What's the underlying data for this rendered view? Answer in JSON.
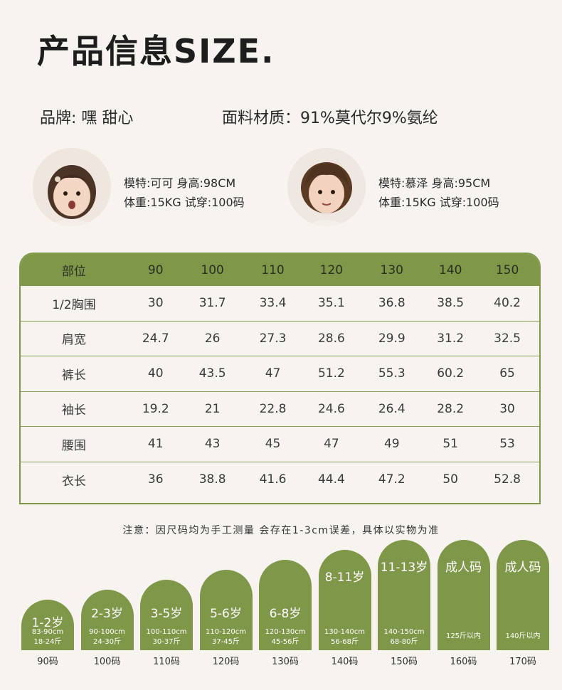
{
  "title": "产品信息SIZE.",
  "brand": "品牌: 嘿 甜心",
  "fabric": "面料材质：91%莫代尔9%氨纶",
  "models": [
    {
      "line1": "模特:可可 身高:98CM",
      "line2": "体重:15KG 试穿:100码"
    },
    {
      "line1": "模特:慕泽  身高:95CM",
      "line2": "体重:15KG 试穿:100码"
    }
  ],
  "table": {
    "headers": [
      "部位",
      "90",
      "100",
      "110",
      "120",
      "130",
      "140",
      "150"
    ],
    "rows": [
      [
        "1/2胸围",
        "30",
        "31.7",
        "33.4",
        "35.1",
        "36.8",
        "38.5",
        "40.2"
      ],
      [
        "肩宽",
        "24.7",
        "26",
        "27.3",
        "28.6",
        "29.9",
        "31.2",
        "32.5"
      ],
      [
        "裤长",
        "40",
        "43.5",
        "47",
        "51.2",
        "55.3",
        "60.2",
        "65"
      ],
      [
        "袖长",
        "19.2",
        "21",
        "22.8",
        "24.6",
        "26.4",
        "28.2",
        "30"
      ],
      [
        "腰围",
        "41",
        "43",
        "45",
        "47",
        "49",
        "51",
        "53"
      ],
      [
        "衣长",
        "36",
        "38.8",
        "41.6",
        "44.4",
        "47.2",
        "50",
        "52.8"
      ]
    ]
  },
  "note": "注意：因尺码均为手工测量 会存在1-3cm误差，具体以实物为准",
  "age_chart": [
    {
      "age": "1-2岁",
      "height": "83-90cm",
      "weight": "18-24斤",
      "size": "90码",
      "level": 1
    },
    {
      "age": "2-3岁",
      "height": "90-100cm",
      "weight": "24-30斤",
      "size": "100码",
      "level": 2
    },
    {
      "age": "3-5岁",
      "height": "100-110cm",
      "weight": "30-37斤",
      "size": "110码",
      "level": 3
    },
    {
      "age": "5-6岁",
      "height": "110-120cm",
      "weight": "37-45斤",
      "size": "120码",
      "level": 4
    },
    {
      "age": "6-8岁",
      "height": "120-130cm",
      "weight": "45-56斤",
      "size": "130码",
      "level": 5
    },
    {
      "age": "8-11岁",
      "height": "130-140cm",
      "weight": "56-68斤",
      "size": "140码",
      "level": 6
    },
    {
      "age": "11-13岁",
      "height": "140-150cm",
      "weight": "68-80斤",
      "size": "150码",
      "level": 7
    },
    {
      "age": "成人码",
      "height": "125斤以内",
      "weight": "",
      "size": "160码",
      "level": 7
    },
    {
      "age": "成人码",
      "height": "140斤以内",
      "weight": "",
      "size": "170码",
      "level": 7
    }
  ]
}
